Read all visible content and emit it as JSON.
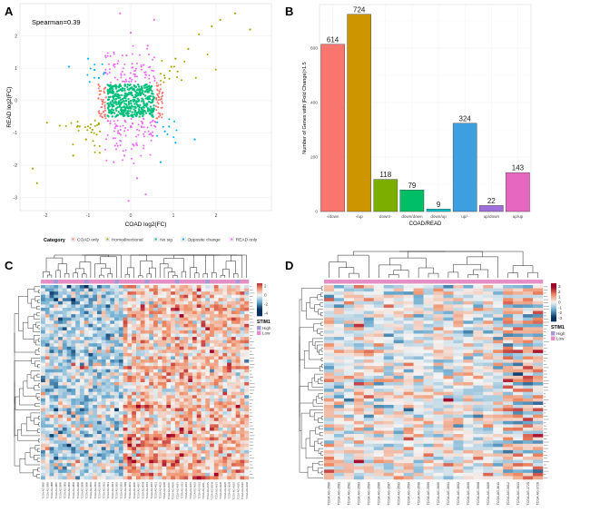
{
  "panels": {
    "a": {
      "letter": "A"
    },
    "b": {
      "letter": "B"
    },
    "c": {
      "letter": "C"
    },
    "d": {
      "letter": "D"
    }
  },
  "chart_data": [
    {
      "panel": "A",
      "type": "scatter",
      "title": "",
      "xlabel": "COAD log2(FC)",
      "ylabel": "READ log2(FC)",
      "annotation": "Spearman=0.39",
      "xlim": [
        -2.6,
        3.3
      ],
      "ylim": [
        -3.4,
        3.0
      ],
      "xticks": [
        -2,
        -1,
        0,
        1,
        2
      ],
      "yticks": [
        -3,
        -2,
        -1,
        0,
        1,
        2
      ],
      "legend": {
        "title": "Category",
        "entries": [
          "COAD only",
          "Homodirectional",
          "No sig",
          "Opposite change",
          "READ only"
        ],
        "placement": "bottom"
      },
      "series": [
        {
          "name": "COAD only",
          "color": "#f8766d",
          "points": [
            [
              0.62,
              0.2
            ],
            [
              0.64,
              -0.2
            ],
            [
              0.66,
              0.1
            ],
            [
              0.7,
              0.35
            ],
            [
              -0.58,
              0.1
            ],
            [
              -0.6,
              -0.3
            ],
            [
              -0.62,
              0.25
            ],
            [
              -0.65,
              -0.05
            ],
            [
              0.68,
              -0.4
            ],
            [
              0.72,
              0.05
            ],
            [
              -0.7,
              0.3
            ],
            [
              -0.68,
              -0.2
            ],
            [
              0.75,
              0.25
            ],
            [
              -0.6,
              0.4
            ],
            [
              0.63,
              0.45
            ],
            [
              0.66,
              -0.5
            ]
          ]
        },
        {
          "name": "Homodirectional",
          "color": "#a3a500",
          "points": [
            [
              -2.3,
              -2.1
            ],
            [
              -2.2,
              -2.55
            ],
            [
              -1.35,
              -1.7
            ],
            [
              -1.05,
              -1.2
            ],
            [
              -1.2,
              -0.8
            ],
            [
              -0.9,
              -0.9
            ],
            [
              -0.75,
              -0.7
            ],
            [
              -0.8,
              -1.05
            ],
            [
              1.05,
              1.3
            ],
            [
              1.35,
              1.6
            ],
            [
              1.6,
              2.05
            ],
            [
              2.1,
              2.5
            ],
            [
              2.45,
              2.7
            ],
            [
              1.1,
              0.9
            ],
            [
              0.95,
              1.05
            ],
            [
              0.8,
              0.7
            ],
            [
              2.8,
              2.2
            ],
            [
              1.9,
              2.3
            ]
          ]
        },
        {
          "name": "No sig",
          "color": "#00bf7d",
          "points": [
            [
              0.0,
              0.0
            ],
            [
              0.3,
              0.2
            ],
            [
              -0.3,
              -0.2
            ],
            [
              0.45,
              0.4
            ],
            [
              -0.45,
              -0.4
            ],
            [
              0.2,
              -0.3
            ],
            [
              -0.2,
              0.3
            ],
            [
              0.5,
              -0.45
            ],
            [
              -0.5,
              0.45
            ]
          ]
        },
        {
          "name": "Opposite change",
          "color": "#00b0f6",
          "points": [
            [
              -1.45,
              1.05
            ],
            [
              -0.85,
              0.95
            ],
            [
              -0.75,
              0.7
            ],
            [
              0.8,
              -0.95
            ],
            [
              1.05,
              -1.3
            ],
            [
              0.9,
              -0.8
            ],
            [
              1.5,
              -1.2
            ],
            [
              -1.0,
              1.3
            ],
            [
              0.7,
              -1.9
            ]
          ]
        },
        {
          "name": "READ only",
          "color": "#e76bf3",
          "points": [
            [
              0.1,
              0.75
            ],
            [
              -0.2,
              0.9
            ],
            [
              0.3,
              1.1
            ],
            [
              -0.1,
              1.4
            ],
            [
              0.25,
              -0.8
            ],
            [
              -0.3,
              -1.0
            ],
            [
              0.05,
              -1.35
            ],
            [
              -0.15,
              -1.7
            ],
            [
              0.4,
              1.7
            ],
            [
              -0.4,
              -1.9
            ],
            [
              0.0,
              2.1
            ],
            [
              0.15,
              -2.4
            ],
            [
              -0.05,
              -3.1
            ],
            [
              0.55,
              2.5
            ],
            [
              -0.25,
              2.7
            ],
            [
              0.35,
              -2.9
            ]
          ]
        }
      ]
    },
    {
      "panel": "B",
      "type": "bar",
      "title": "",
      "xlabel": "COAD/READ",
      "ylabel": "Number of Genes with |Fold Change|>1.5",
      "ylim": [
        0,
        760
      ],
      "yticks": [
        0,
        200,
        400,
        600
      ],
      "categories": [
        "-/down",
        "-/up",
        "down/-",
        "down/down",
        "down/up",
        "up/-",
        "up/down",
        "up/up"
      ],
      "values": [
        614,
        724,
        118,
        79,
        9,
        324,
        22,
        143
      ],
      "colors": [
        "#f8766d",
        "#cd9600",
        "#7cae00",
        "#00be67",
        "#00bfc4",
        "#3d9fe0",
        "#9f6fd9",
        "#e567c0"
      ]
    },
    {
      "panel": "C",
      "type": "heatmap",
      "legend": {
        "title": "STIM1",
        "entries": [
          "High",
          "Low"
        ],
        "colors": [
          "#a39bd6",
          "#e58fc6"
        ]
      },
      "colorbar": {
        "ticks": [
          2,
          0,
          -2,
          -4
        ],
        "max_color": "#9e0027",
        "mid_color": "#f4f4f4",
        "min_color": "#053061"
      },
      "n_rows": 60,
      "n_cols": 48,
      "column_labels": [
        "TCGA-AG-3882",
        "TCGA-AG-3883",
        "TCGA-AG-3885",
        "TCGA-AG-3887",
        "TCGA-AG-3890",
        "TCGA-AG-3892",
        "TCGA-AG-3893",
        "TCGA-AG-3894",
        "TCGA-AG-3896",
        "TCGA-AG-3898",
        "TCGA-AG-3899",
        "TCGA-AG-3901",
        "TCGA-AG-3902",
        "TCGA-AG-3909",
        "TCGA-AG-3911",
        "TCGA-AG-3913",
        "TCGA-AG-3914",
        "TCGA-AG-3916",
        "TCGA-AG-3919",
        "TCGA-AG-3999",
        "TCGA-AG-4001",
        "TCGA-AG-4005",
        "TCGA-AG-4007",
        "TCGA-AG-4008",
        "TCGA-AG-4013",
        "TCGA-AG-4015",
        "TCGA-AG-4021",
        "TCGA-AG-4022",
        "TCGA-AG-A008",
        "TCGA-AG-A00C",
        "TCGA-AG-A00H",
        "TCGA-AG-A00Y",
        "TCGA-AG-A011",
        "TCGA-AG-A014",
        "TCGA-AG-A015",
        "TCGA-AG-A016",
        "TCGA-AG-A01J",
        "TCGA-AG-A01L",
        "TCGA-AG-A01N",
        "TCGA-AG-A01W",
        "TCGA-AG-A01Y",
        "TCGA-AG-A020",
        "TCGA-AG-A025",
        "TCGA-AG-A026",
        "TCGA-AG-A02G",
        "TCGA-AG-A02N",
        "TCGA-AG-A02X",
        "TCGA-AG-A032"
      ]
    },
    {
      "panel": "D",
      "type": "heatmap",
      "legend": {
        "title": "STIM1",
        "entries": [
          "High",
          "Low"
        ],
        "colors": [
          "#a39bd6",
          "#e58fc6"
        ]
      },
      "colorbar": {
        "ticks": [
          3,
          2,
          1,
          0,
          -1,
          -2,
          -3
        ],
        "max_color": "#9e0027",
        "mid_color": "#f4f4f4",
        "min_color": "#053061"
      },
      "n_rows": 60,
      "n_cols": 22,
      "column_labels": [
        "TCGA-AG-3580",
        "TCGA-AG-3581",
        "TCGA-AG-3582",
        "TCGA-AG-3583",
        "TCGA-AG-3584",
        "TCGA-AG-3586",
        "TCGA-AG-3587",
        "TCGA-AG-3593",
        "TCGA-AG-3594",
        "TCGA-AG-3598",
        "TCGA-AG-3599",
        "TCGA-AG-3600",
        "TCGA-AG-3601",
        "TCGA-AG-3602",
        "TCGA-AG-3605",
        "TCGA-AG-3608",
        "TCGA-AG-3609",
        "TCGA-AG-3611",
        "TCGA-AG-3612",
        "TCGA-AG-3613",
        "TCGA-AG-3725",
        "TCGA-AG-3726"
      ]
    }
  ]
}
